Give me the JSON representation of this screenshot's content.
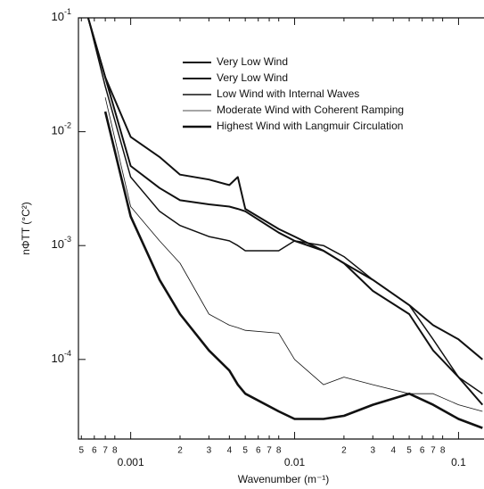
{
  "chart_data": {
    "type": "line",
    "x_label": "Wavenumber (m⁻¹)",
    "y_label": "nΦTT (°C²)",
    "log_x": true,
    "log_y": true,
    "xlim": [
      0.00048,
      0.143
    ],
    "ylim": [
      2e-05,
      0.1
    ],
    "xticks": [
      {
        "value": 0.0005,
        "label": "5"
      },
      {
        "value": 0.0006,
        "label": "6"
      },
      {
        "value": 0.0007,
        "label": "7"
      },
      {
        "value": 0.0008,
        "label": "8"
      },
      0.001,
      {
        "value": 0.002,
        "label": "2"
      },
      {
        "value": 0.003,
        "label": "3"
      },
      {
        "value": 0.004,
        "label": "4"
      },
      {
        "value": 0.005,
        "label": "5"
      },
      {
        "value": 0.006,
        "label": "6"
      },
      {
        "value": 0.007,
        "label": "7"
      },
      {
        "value": 0.008,
        "label": "8"
      },
      0.01,
      {
        "value": 0.02,
        "label": "2"
      },
      {
        "value": 0.03,
        "label": "3"
      },
      {
        "value": 0.04,
        "label": "4"
      },
      {
        "value": 0.05,
        "label": "5"
      },
      {
        "value": 0.06,
        "label": "6"
      },
      {
        "value": 0.07,
        "label": "7"
      },
      {
        "value": 0.08,
        "label": "8"
      },
      0.1
    ],
    "yticks": [
      {
        "value": 0.0001,
        "label": "10-4"
      },
      {
        "value": 0.001,
        "label": "10-3"
      },
      {
        "value": 0.01,
        "label": "10-2"
      },
      {
        "value": 0.1,
        "label": "10-1"
      }
    ],
    "x": [
      0.0005,
      0.00055,
      0.0007,
      0.001,
      0.0015,
      0.002,
      0.003,
      0.004,
      0.0045,
      0.005,
      0.008,
      0.01,
      0.015,
      0.02,
      0.03,
      0.05,
      0.07,
      0.1,
      0.14
    ],
    "series": [
      {
        "name": "Very Low Wind",
        "color": "#111111",
        "values": [
          null,
          0.1,
          0.03,
          0.009,
          0.006,
          0.0042,
          0.0038,
          0.0034,
          0.004,
          0.0021,
          0.0014,
          0.0012,
          0.0009,
          0.0007,
          0.0004,
          0.00025,
          0.00012,
          7e-05,
          4e-05
        ]
      },
      {
        "name": "Very Low Wind",
        "color": "#111111",
        "values": [
          null,
          0.1,
          0.03,
          0.005,
          0.0032,
          0.0025,
          0.0023,
          0.0022,
          0.0021,
          0.002,
          0.0013,
          0.0011,
          0.0009,
          0.0007,
          0.0005,
          0.0003,
          0.0002,
          0.00015,
          0.0001
        ]
      },
      {
        "name": "Low Wind with Internal Waves",
        "color": "#111111",
        "values": [
          null,
          0.1,
          0.025,
          0.004,
          0.002,
          0.0015,
          0.0012,
          0.0011,
          0.001,
          0.0009,
          0.0009,
          0.0011,
          0.001,
          0.0008,
          0.0005,
          0.0003,
          0.00015,
          7e-05,
          5e-05
        ]
      },
      {
        "name": "Moderate Wind with Coherent Ramping",
        "color": "#111111",
        "values": [
          0.075,
          null,
          0.02,
          0.0022,
          0.0011,
          0.0007,
          0.00025,
          0.0002,
          0.00019,
          0.00018,
          0.00017,
          0.0001,
          6e-05,
          7e-05,
          6e-05,
          5e-05,
          5e-05,
          4e-05,
          3.5e-05
        ]
      },
      {
        "name": "Highest Wind with Langmuir Circulation",
        "color": "#111111",
        "values": [
          0.075,
          null,
          0.015,
          0.0018,
          0.0005,
          0.00025,
          0.00012,
          8e-05,
          6e-05,
          5e-05,
          3.5e-05,
          3e-05,
          3e-05,
          3.2e-05,
          4e-05,
          5e-05,
          4e-05,
          3e-05,
          2.5e-05
        ]
      }
    ]
  }
}
